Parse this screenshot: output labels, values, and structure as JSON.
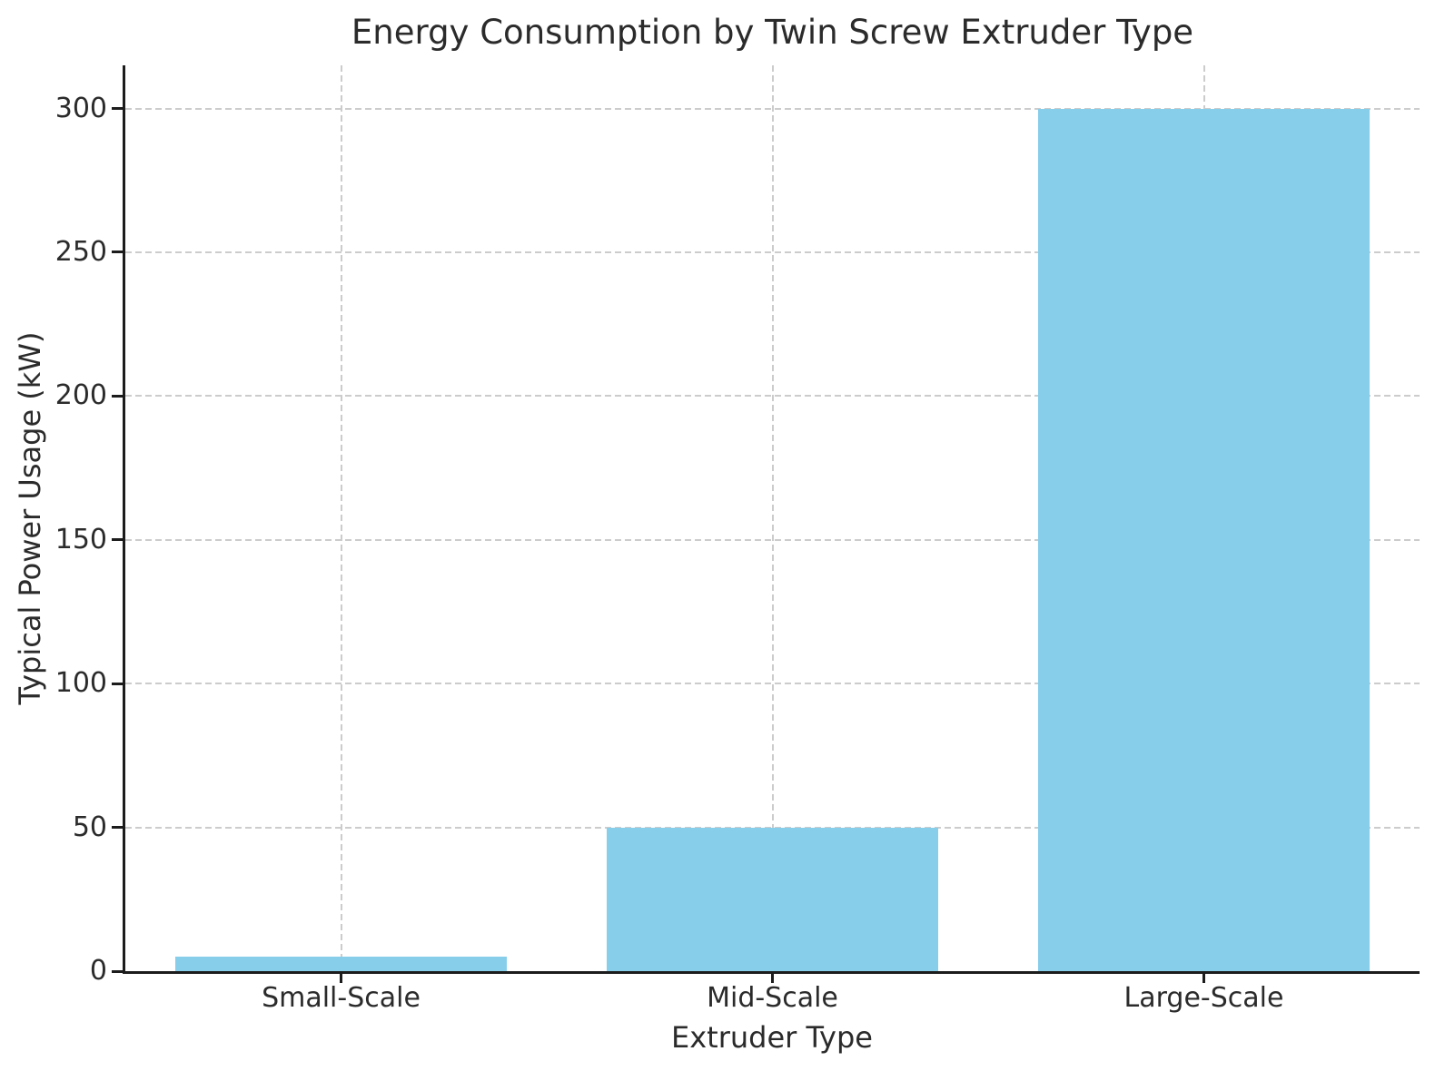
{
  "chart_data": {
    "type": "bar",
    "title": "Energy Consumption by Twin Screw Extruder Type",
    "xlabel": "Extruder Type",
    "ylabel": "Typical Power Usage (kW)",
    "categories": [
      "Small-Scale",
      "Mid-Scale",
      "Large-Scale"
    ],
    "values": [
      5,
      50,
      300
    ],
    "yticks": [
      0,
      50,
      100,
      150,
      200,
      250,
      300
    ],
    "ylim": [
      0,
      315
    ],
    "bar_width_fraction": 0.77,
    "grid": "dashed",
    "legend_position": "none",
    "colors": {
      "bar": "#87CEEB",
      "grid": "#cccccc",
      "axis": "#1c1c1c",
      "text": "#2b2b2b",
      "background": "#ffffff"
    }
  }
}
